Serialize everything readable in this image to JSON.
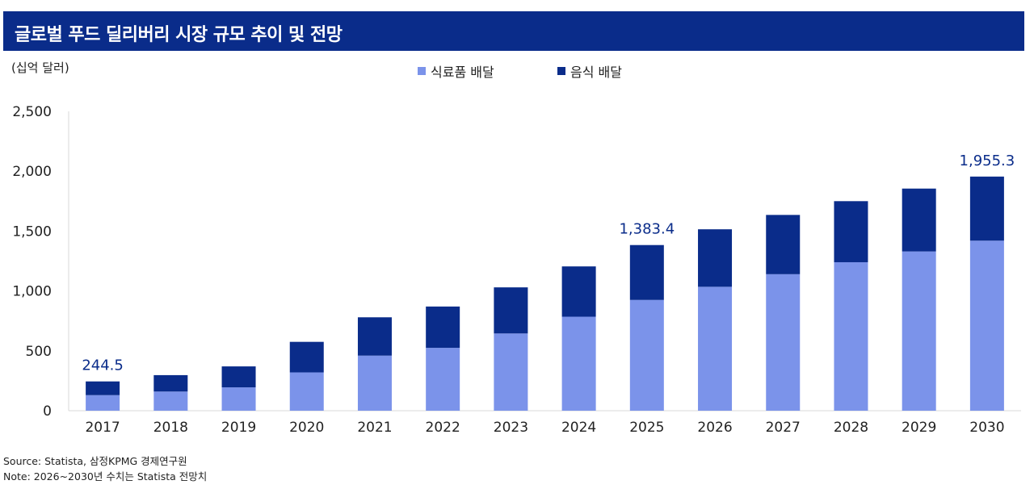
{
  "header": {
    "title": "글로벌 푸드 딜리버리 시장 규모 추이 및 전망"
  },
  "unit_label": "(십억 달러)",
  "legend": [
    {
      "label": "식료품 배달",
      "color": "#7b93ea"
    },
    {
      "label": "음식 배달",
      "color": "#0a2c8a"
    }
  ],
  "chart_data": {
    "type": "bar",
    "stacked": true,
    "title": "",
    "xlabel": "",
    "ylabel": "",
    "categories": [
      "2017",
      "2018",
      "2019",
      "2020",
      "2021",
      "2022",
      "2023",
      "2024",
      "2025",
      "2026",
      "2027",
      "2028",
      "2029",
      "2030"
    ],
    "series": [
      {
        "name": "식료품 배달",
        "color": "#7b93ea",
        "values": [
          130,
          160,
          195,
          320,
          460,
          525,
          645,
          785,
          925,
          1035,
          1140,
          1240,
          1330,
          1420
        ]
      },
      {
        "name": "음식 배달",
        "color": "#0a2c8a",
        "values": [
          114.5,
          137,
          175,
          255,
          320,
          345,
          385,
          420,
          458.4,
          480,
          495,
          510,
          525,
          535.3
        ]
      }
    ],
    "totals_labels": [
      {
        "category": "2017",
        "text": "244.5"
      },
      {
        "category": "2025",
        "text": "1,383.4"
      },
      {
        "category": "2030",
        "text": "1,955.3"
      }
    ],
    "y_ticks": [
      0,
      500,
      1000,
      1500,
      2000,
      2500
    ],
    "y_tick_labels": [
      "0",
      "500",
      "1,000",
      "1,500",
      "2,000",
      "2,500"
    ],
    "ylim": [
      0,
      2500
    ],
    "grid": false,
    "legend_position": "top-center"
  },
  "footnotes": {
    "source": "Source: Statista, 삼정KPMG 경제연구원",
    "note": "Note: 2026~2030년 수치는 Statista 전망치"
  }
}
